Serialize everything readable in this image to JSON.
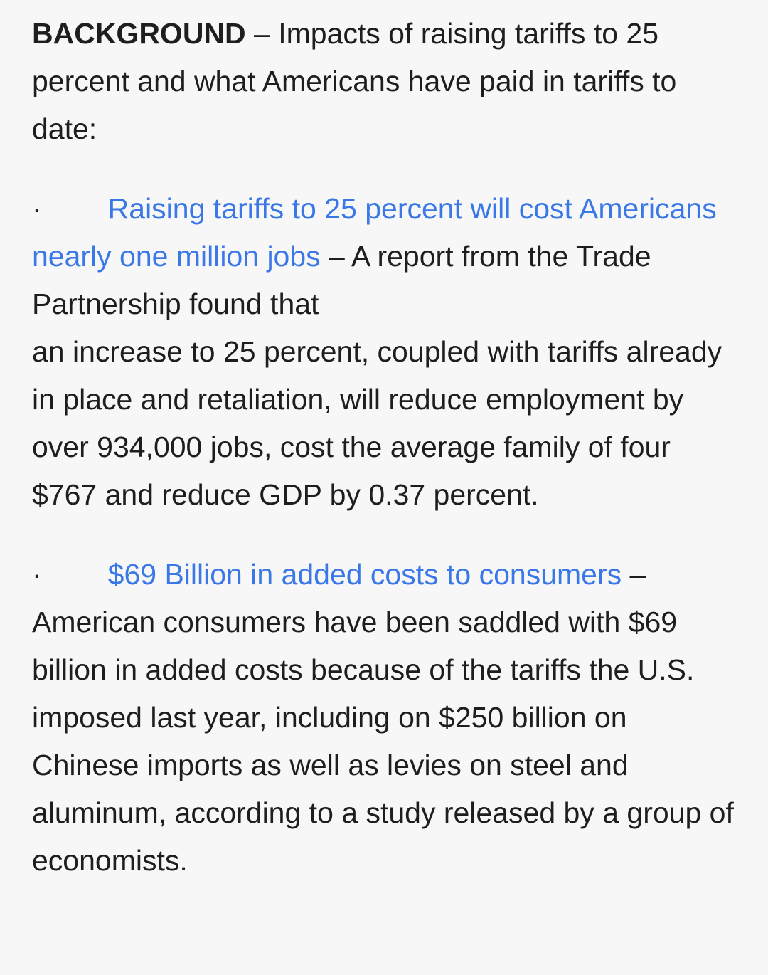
{
  "page": {
    "background_color": "#f7f7f8",
    "text_color": "#1e1e20",
    "link_color": "#3b78e7"
  },
  "intro": {
    "bold_label": "BACKGROUND",
    "text": " – Impacts of raising tariffs to 25 percent and what Americans have paid in tariffs to date:"
  },
  "bullets": [
    {
      "marker": "·",
      "link_text": "Raising tariffs to 25 percent will cost Americans nearly one million jobs",
      "text_line1": " – A report from the Trade Partnership found that",
      "text_line2": "an increase to 25 percent, coupled with tariffs already in place and retaliation, will reduce employment by over 934,000 jobs, cost the average family of four $767 and reduce GDP by 0.37 percent."
    },
    {
      "marker": "·",
      "link_text": "$69 Billion in added costs to consumers",
      "text": " – American consumers have been saddled with $69 billion in added costs because of the tariffs the U.S. imposed last year, including on $250 billion on Chinese imports as well as levies on steel and aluminum, according to a study released by a group of economists."
    }
  ]
}
